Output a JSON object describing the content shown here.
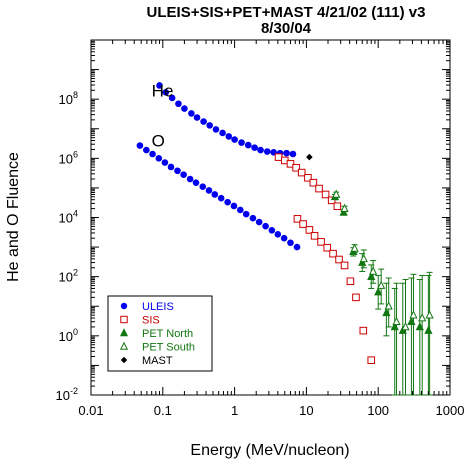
{
  "chart_data": {
    "type": "scatter",
    "title_line1": "ULEIS+SIS+PET+MAST 4/21/02 (111) v3",
    "title_line2": "8/30/04",
    "xlabel": "Energy (MeV/nucleon)",
    "ylabel": "He and O Fluence",
    "xscale": "log",
    "yscale": "log",
    "xlim": [
      0.01,
      1000
    ],
    "ylim": [
      0.01,
      10000000000
    ],
    "grid": false,
    "legend_position": "bottom-left",
    "x_ticks": [
      {
        "value": 0.01,
        "label": "0.01"
      },
      {
        "value": 0.1,
        "label": "0.1"
      },
      {
        "value": 1,
        "label": "1"
      },
      {
        "value": 10,
        "label": "10"
      },
      {
        "value": 100,
        "label": "100"
      },
      {
        "value": 1000,
        "label": "1000"
      }
    ],
    "y_ticks": [
      {
        "value": 0.01,
        "base": "10",
        "exp": "-2"
      },
      {
        "value": 1,
        "base": "10",
        "exp": "0"
      },
      {
        "value": 100,
        "base": "10",
        "exp": "2"
      },
      {
        "value": 10000,
        "base": "10",
        "exp": "4"
      },
      {
        "value": 1000000,
        "base": "10",
        "exp": "6"
      },
      {
        "value": 100000000,
        "base": "10",
        "exp": "8"
      }
    ],
    "annotations": [
      {
        "text": "He",
        "x": 0.07,
        "y": 200000000
      },
      {
        "text": "O",
        "x": 0.07,
        "y": 4000000
      }
    ],
    "series": [
      {
        "name": "ULEIS",
        "marker": "circle",
        "color": "#0000ee",
        "x": [
          0.09,
          0.11,
          0.135,
          0.165,
          0.2,
          0.25,
          0.3,
          0.37,
          0.45,
          0.55,
          0.68,
          0.83,
          1.0,
          1.25,
          1.55,
          1.9,
          2.3,
          2.85,
          3.5,
          4.3,
          5.3,
          6.5,
          0.048,
          0.059,
          0.072,
          0.088,
          0.107,
          0.13,
          0.16,
          0.195,
          0.24,
          0.29,
          0.36,
          0.44,
          0.53,
          0.65,
          0.8,
          0.98,
          1.2,
          1.45,
          1.8,
          2.2,
          2.7,
          3.3,
          4.0,
          4.9,
          6.0,
          7.4
        ],
        "y": [
          290000000,
          170000000,
          110000000,
          70000000,
          48000000,
          33000000,
          24000000,
          17500000,
          13000000,
          9500000,
          7200000,
          5500000,
          4300000,
          3400000,
          2800000,
          2300000,
          1900000,
          1700000,
          1600000,
          1500000,
          1500000,
          1400000,
          2700000,
          1900000,
          1400000,
          1000000,
          720000,
          510000,
          380000,
          280000,
          200000,
          150000,
          110000,
          82000,
          60000,
          45000,
          33000,
          24500,
          18000,
          13000,
          9500,
          7000,
          5100,
          3700,
          2700,
          2000,
          1400,
          1000
        ]
      },
      {
        "name": "SIS",
        "marker": "open-square",
        "color": "#cc0000",
        "x": [
          4.1,
          5.0,
          6.0,
          7.2,
          8.6,
          10.5,
          12.5,
          15.0,
          18.5,
          22.5,
          27.0,
          7.5,
          9.0,
          11.0,
          13.0,
          16.0,
          19.5,
          23.5,
          28.5,
          34.0,
          41.0,
          49.0,
          62.0,
          80.0
        ],
        "y": [
          1100000,
          850000,
          650000,
          480000,
          330000,
          220000,
          150000,
          95000,
          60000,
          38000,
          24000,
          9000,
          6000,
          3800,
          2400,
          1500,
          950,
          600,
          380,
          240,
          70,
          20,
          1.5,
          0.15
        ]
      },
      {
        "name": "PET North",
        "marker": "filled-triangle",
        "color": "#117711",
        "x": [
          25,
          33,
          45,
          60,
          80,
          100,
          130,
          170,
          220,
          290,
          380,
          500
        ],
        "y": [
          50000,
          15000,
          700,
          300,
          100,
          30,
          6,
          2,
          1.5,
          3,
          2,
          1.5
        ],
        "y_low": [
          40000,
          12000,
          500,
          150,
          40,
          8,
          1,
          0.01,
          0.01,
          0.01,
          0.01,
          0.01
        ],
        "y_high": [
          60000,
          18000,
          950,
          600,
          250,
          110,
          60,
          40,
          60,
          90,
          80,
          110
        ]
      },
      {
        "name": "PET South",
        "marker": "open-triangle",
        "color": "#117711",
        "x": [
          26,
          34,
          47,
          63,
          85,
          110,
          140,
          180,
          240,
          310,
          410,
          520
        ],
        "y": [
          60000,
          20000,
          900,
          400,
          150,
          50,
          10,
          3,
          2,
          5,
          4,
          5
        ],
        "y_low": [
          48000,
          16000,
          650,
          200,
          60,
          12,
          2,
          0.01,
          0.01,
          0.01,
          0.01,
          0.01
        ],
        "y_high": [
          72000,
          24000,
          1200,
          800,
          350,
          180,
          90,
          60,
          80,
          120,
          110,
          140
        ]
      },
      {
        "name": "MAST",
        "marker": "filled-diamond",
        "color": "#000000",
        "x": [
          11
        ],
        "y": [
          1100000
        ]
      }
    ]
  }
}
